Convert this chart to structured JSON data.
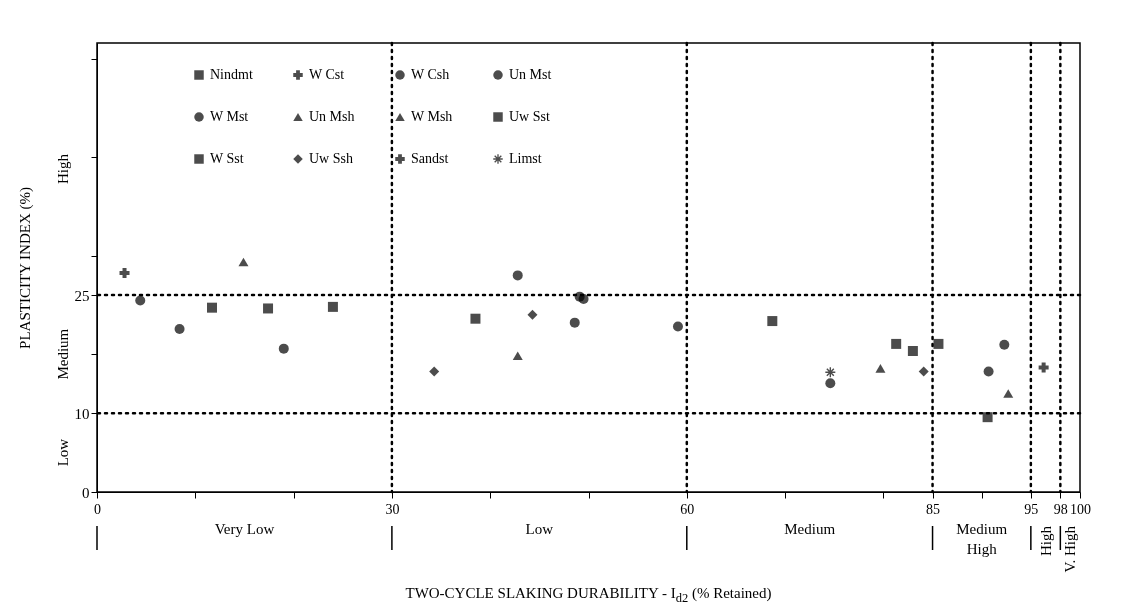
{
  "chart_data": {
    "type": "scatter",
    "xlabel": "TWO-CYCLE SLAKING DURABILITY - I$_{d2}$ (% Retained)",
    "ylabel": "PLASTICITY INDEX (%)",
    "xlim": [
      0,
      100
    ],
    "ylim": [
      0,
      57
    ],
    "xticks": [
      0,
      {
        "value": 10,
        "label": null
      },
      {
        "value": 20,
        "label": null
      },
      30,
      {
        "value": 40,
        "label": null
      },
      {
        "value": 50,
        "label": null
      },
      60,
      {
        "value": 70,
        "label": null
      },
      {
        "value": 80,
        "label": null
      },
      85,
      {
        "value": 90,
        "label": null
      },
      95,
      98,
      100
    ],
    "yticks": [
      0,
      10,
      {
        "value": 17.5,
        "label": null
      },
      25,
      {
        "value": 30,
        "label": null
      },
      {
        "value": 42.5,
        "label": null
      },
      {
        "value": 55,
        "label": null
      }
    ],
    "grid": false,
    "legend": "top left",
    "ref_lines": [
      {
        "axis": "x",
        "value": 30,
        "line_style": "dotted"
      },
      {
        "axis": "x",
        "value": 60,
        "line_style": "dotted"
      },
      {
        "axis": "x",
        "value": 85,
        "line_style": "dotted"
      },
      {
        "axis": "x",
        "value": 95,
        "line_style": "dotted"
      },
      {
        "axis": "x",
        "value": 98,
        "line_style": "dotted"
      },
      {
        "axis": "y",
        "value": 10,
        "line_style": "dotted"
      },
      {
        "axis": "y",
        "value": 25,
        "line_style": "dotted"
      }
    ],
    "annotations": [
      "Very Low",
      "Low",
      "Medium",
      "Medium High",
      "High",
      "V. High",
      "Low",
      "Medium",
      "High"
    ],
    "series": [
      {
        "name": "Nindmt",
        "marker": "square",
        "color": "#000000",
        "x": [
          11.7,
          17.4,
          24.0,
          38.5
        ],
        "values": [
          23.4,
          23.3,
          23.5,
          22.0
        ]
      },
      {
        "name": "W Cst",
        "marker": "cross",
        "color": "#000000",
        "x": [
          2.8
        ],
        "values": [
          27.8
        ]
      },
      {
        "name": "W Csh",
        "marker": "circle",
        "color": "#000000",
        "x": [
          19.0,
          74.6
        ],
        "values": [
          18.2,
          13.8
        ]
      },
      {
        "name": "Un Mst",
        "marker": "circle",
        "color": "#000000",
        "x": [
          42.8,
          92.3,
          90.7
        ],
        "values": [
          27.5,
          18.7,
          15.3
        ]
      },
      {
        "name": "W Mst",
        "marker": "circle",
        "color": "#000000",
        "x": [
          4.4,
          8.4,
          49.1,
          49.5,
          48.6,
          59.1
        ],
        "values": [
          24.3,
          20.7,
          24.8,
          24.5,
          21.5,
          21.0
        ]
      },
      {
        "name": "Un Msh",
        "marker": "triangle",
        "color": "#000000",
        "x": [
          79.7,
          92.7
        ],
        "values": [
          15.7,
          12.5
        ]
      },
      {
        "name": "W Msh",
        "marker": "triangle",
        "color": "#000000",
        "x": [
          14.9,
          42.8
        ],
        "values": [
          29.2,
          17.3
        ]
      },
      {
        "name": "Uw Sst",
        "marker": "square",
        "color": "#000000",
        "x": [
          81.3,
          83.0,
          85.6,
          90.6
        ],
        "values": [
          18.8,
          17.9,
          18.8,
          9.5
        ]
      },
      {
        "name": "W Sst",
        "marker": "square",
        "color": "#000000",
        "x": [
          68.7
        ],
        "values": [
          21.7
        ]
      },
      {
        "name": "Uw Ssh",
        "marker": "diamond",
        "color": "#000000",
        "x": [
          34.3,
          44.3,
          84.1
        ],
        "values": [
          15.3,
          22.5,
          15.3
        ]
      },
      {
        "name": "Sandst",
        "marker": "cross",
        "color": "#000000",
        "x": [
          96.3
        ],
        "values": [
          15.8
        ]
      },
      {
        "name": "Limst",
        "marker": "star",
        "color": "#000000",
        "x": [
          74.6
        ],
        "values": [
          15.2
        ]
      }
    ]
  }
}
